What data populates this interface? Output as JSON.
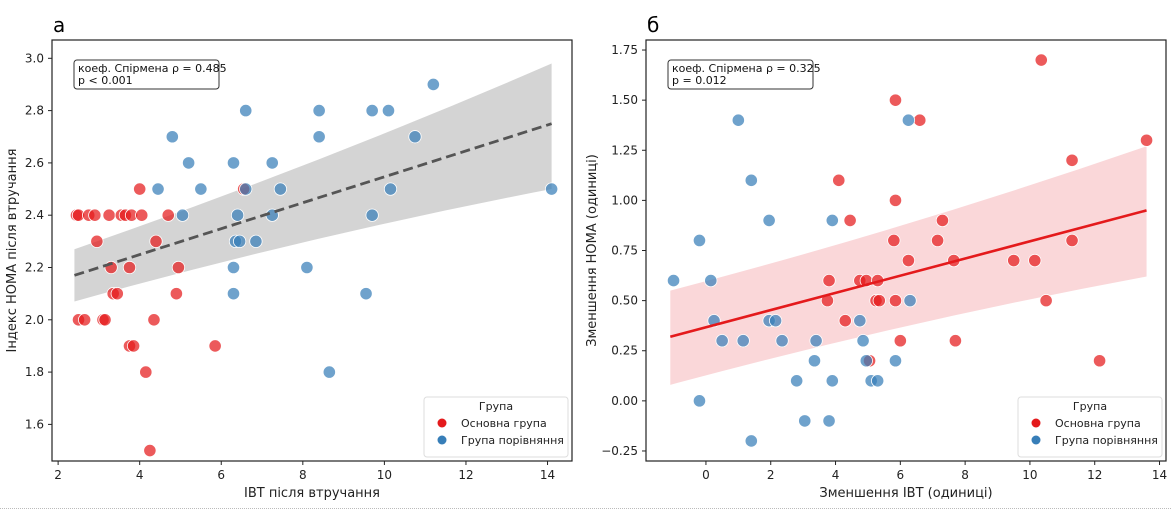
{
  "chart_data": [
    {
      "type": "scatter",
      "panel_label": "а",
      "title": "",
      "xlabel": "ІВТ після втручання",
      "ylabel": "Індекс HOMA після втручання",
      "xlim": [
        1.85,
        14.6
      ],
      "ylim": [
        1.46,
        3.07
      ],
      "xticks": [
        2,
        4,
        6,
        8,
        10,
        12,
        14
      ],
      "yticks": [
        1.6,
        1.8,
        2.0,
        2.2,
        2.4,
        2.6,
        2.8,
        3.0
      ],
      "xtick_labels": [
        "2",
        "4",
        "6",
        "8",
        "10",
        "12",
        "14"
      ],
      "ytick_labels": [
        "1.6",
        "1.8",
        "2.0",
        "2.2",
        "2.4",
        "2.6",
        "2.8",
        "3.0"
      ],
      "annotation": [
        "коеф. Спірмена ρ = 0.485",
        "p < 0.001"
      ],
      "regression": {
        "style": "dashed",
        "color": "#555555",
        "band_color": "#cccccc",
        "x_range": [
          2.4,
          14.1
        ],
        "y_start": 2.17,
        "y_end": 2.75,
        "ci_low_start": 2.07,
        "ci_low_end": 2.5,
        "ci_high_start": 2.27,
        "ci_high_end": 2.98
      },
      "legend": {
        "title": "Група",
        "position": "lower-right"
      },
      "series": [
        {
          "name": "Основна група",
          "color": "#e41a1c",
          "points": [
            [
              2.45,
              2.4
            ],
            [
              2.5,
              2.4
            ],
            [
              2.75,
              2.4
            ],
            [
              2.9,
              2.4
            ],
            [
              3.25,
              2.4
            ],
            [
              3.55,
              2.4
            ],
            [
              3.65,
              2.4
            ],
            [
              3.8,
              2.4
            ],
            [
              4.05,
              2.4
            ],
            [
              4.7,
              2.4
            ],
            [
              4.0,
              2.5
            ],
            [
              6.55,
              2.5
            ],
            [
              2.95,
              2.3
            ],
            [
              4.4,
              2.3
            ],
            [
              3.3,
              2.2
            ],
            [
              3.75,
              2.2
            ],
            [
              4.95,
              2.2
            ],
            [
              3.35,
              2.1
            ],
            [
              3.45,
              2.1
            ],
            [
              4.9,
              2.1
            ],
            [
              2.5,
              2.0
            ],
            [
              2.65,
              2.0
            ],
            [
              3.1,
              2.0
            ],
            [
              3.15,
              2.0
            ],
            [
              4.35,
              2.0
            ],
            [
              3.75,
              1.9
            ],
            [
              3.85,
              1.9
            ],
            [
              5.85,
              1.9
            ],
            [
              4.15,
              1.8
            ],
            [
              4.25,
              1.5
            ]
          ]
        },
        {
          "name": "Група порівняння",
          "color": "#377eb8",
          "points": [
            [
              4.45,
              2.5
            ],
            [
              5.5,
              2.5
            ],
            [
              6.6,
              2.5
            ],
            [
              7.45,
              2.5
            ],
            [
              10.15,
              2.5
            ],
            [
              14.1,
              2.5
            ],
            [
              5.05,
              2.4
            ],
            [
              6.4,
              2.4
            ],
            [
              7.25,
              2.4
            ],
            [
              9.7,
              2.4
            ],
            [
              6.35,
              2.3
            ],
            [
              6.45,
              2.3
            ],
            [
              6.85,
              2.3
            ],
            [
              6.3,
              2.2
            ],
            [
              8.1,
              2.2
            ],
            [
              6.3,
              2.1
            ],
            [
              9.55,
              2.1
            ],
            [
              8.65,
              1.8
            ],
            [
              5.2,
              2.6
            ],
            [
              6.3,
              2.6
            ],
            [
              7.25,
              2.6
            ],
            [
              4.8,
              2.7
            ],
            [
              8.4,
              2.7
            ],
            [
              10.75,
              2.7
            ],
            [
              6.6,
              2.8
            ],
            [
              8.4,
              2.8
            ],
            [
              9.7,
              2.8
            ],
            [
              10.1,
              2.8
            ],
            [
              11.2,
              2.9
            ]
          ]
        }
      ]
    },
    {
      "type": "scatter",
      "panel_label": "б",
      "title": "",
      "xlabel": "Зменшення ІВТ (одиниці)",
      "ylabel": "Зменшення HOMA (одиниці)",
      "xlim": [
        -1.85,
        14.2
      ],
      "ylim": [
        -0.3,
        1.8
      ],
      "xticks": [
        0,
        2,
        4,
        6,
        8,
        10,
        12,
        14
      ],
      "yticks": [
        -0.25,
        0.0,
        0.25,
        0.5,
        0.75,
        1.0,
        1.25,
        1.5,
        1.75
      ],
      "xtick_labels": [
        "0",
        "2",
        "4",
        "6",
        "8",
        "10",
        "12",
        "14"
      ],
      "ytick_labels": [
        "−0.25",
        "0.00",
        "0.25",
        "0.50",
        "0.75",
        "1.00",
        "1.25",
        "1.50",
        "1.75"
      ],
      "annotation": [
        "коеф. Спірмена ρ = 0.325",
        "p = 0.012"
      ],
      "regression": {
        "style": "solid",
        "color": "#e41a1c",
        "band_color": "#f9d3d5",
        "x_range": [
          -1.1,
          13.6
        ],
        "y_start": 0.32,
        "y_end": 0.95,
        "ci_low_start": 0.08,
        "ci_low_end": 0.62,
        "ci_high_start": 0.55,
        "ci_high_end": 1.27
      },
      "legend": {
        "title": "Група",
        "position": "lower-right"
      },
      "series": [
        {
          "name": "Основна група",
          "color": "#e41a1c",
          "points": [
            [
              10.35,
              1.7
            ],
            [
              5.85,
              1.5
            ],
            [
              6.6,
              1.4
            ],
            [
              13.6,
              1.3
            ],
            [
              11.3,
              1.2
            ],
            [
              4.1,
              1.1
            ],
            [
              5.85,
              1.0
            ],
            [
              4.45,
              0.9
            ],
            [
              7.3,
              0.9
            ],
            [
              5.8,
              0.8
            ],
            [
              7.15,
              0.8
            ],
            [
              11.3,
              0.8
            ],
            [
              6.25,
              0.7
            ],
            [
              7.65,
              0.7
            ],
            [
              9.5,
              0.7
            ],
            [
              10.15,
              0.7
            ],
            [
              3.8,
              0.6
            ],
            [
              4.75,
              0.6
            ],
            [
              4.95,
              0.6
            ],
            [
              5.3,
              0.6
            ],
            [
              3.75,
              0.5
            ],
            [
              5.25,
              0.5
            ],
            [
              5.35,
              0.5
            ],
            [
              5.85,
              0.5
            ],
            [
              10.5,
              0.5
            ],
            [
              4.3,
              0.4
            ],
            [
              6.0,
              0.3
            ],
            [
              7.7,
              0.3
            ],
            [
              5.05,
              0.2
            ],
            [
              12.15,
              0.2
            ]
          ]
        },
        {
          "name": "Група порівняння",
          "color": "#377eb8",
          "points": [
            [
              6.25,
              1.4
            ],
            [
              1.0,
              1.4
            ],
            [
              1.4,
              1.1
            ],
            [
              1.95,
              0.9
            ],
            [
              3.9,
              0.9
            ],
            [
              -0.2,
              0.8
            ],
            [
              -1.0,
              0.6
            ],
            [
              0.15,
              0.6
            ],
            [
              6.3,
              0.5
            ],
            [
              0.25,
              0.4
            ],
            [
              1.95,
              0.4
            ],
            [
              2.15,
              0.4
            ],
            [
              4.75,
              0.4
            ],
            [
              0.5,
              0.3
            ],
            [
              1.15,
              0.3
            ],
            [
              2.35,
              0.3
            ],
            [
              3.4,
              0.3
            ],
            [
              4.85,
              0.3
            ],
            [
              3.35,
              0.2
            ],
            [
              4.95,
              0.2
            ],
            [
              5.85,
              0.2
            ],
            [
              2.8,
              0.1
            ],
            [
              3.9,
              0.1
            ],
            [
              5.1,
              0.1
            ],
            [
              5.3,
              0.1
            ],
            [
              -0.2,
              0.0
            ],
            [
              3.05,
              -0.1
            ],
            [
              3.8,
              -0.1
            ],
            [
              1.4,
              -0.2
            ]
          ]
        }
      ]
    }
  ]
}
